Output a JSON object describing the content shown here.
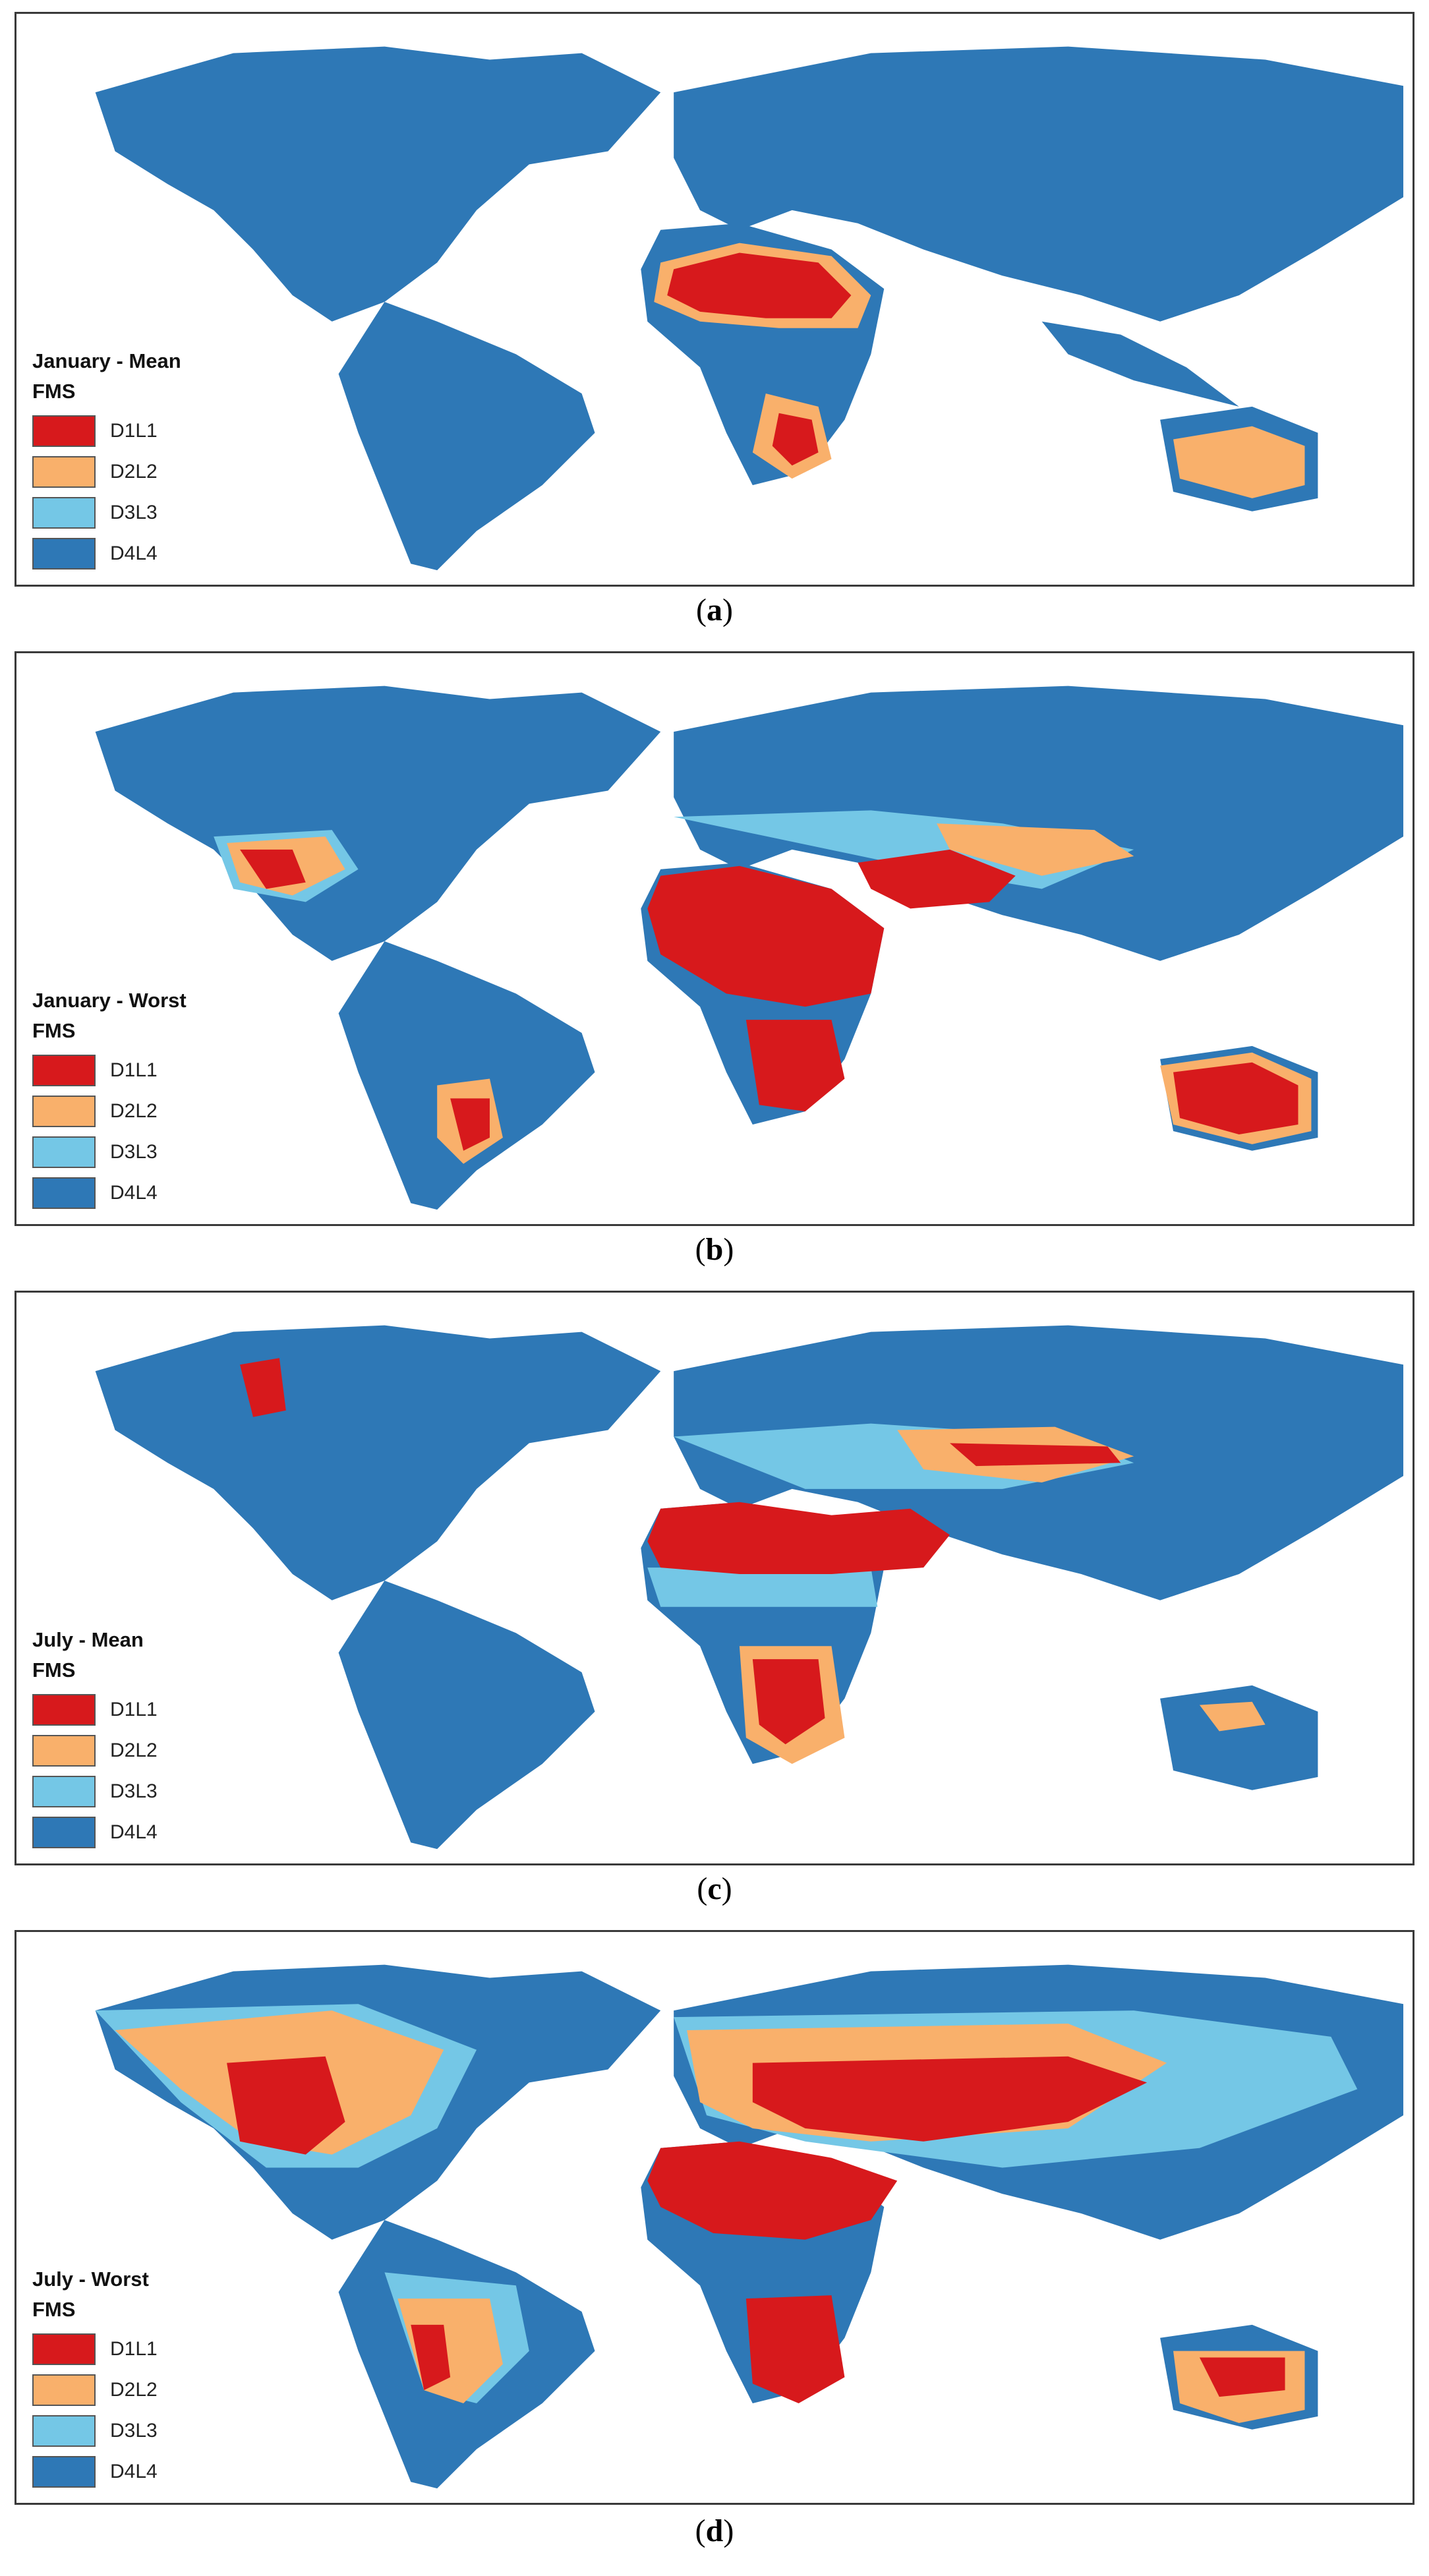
{
  "colors": {
    "D1L1": "#d7191c",
    "D2L2": "#f9b06b",
    "D3L3": "#74c7e6",
    "D4L4": "#2e78b6",
    "border": "#3a3a3a",
    "ocean": "#ffffff"
  },
  "legend_classes": [
    {
      "label": "D1L1",
      "color": "#d7191c"
    },
    {
      "label": "D2L2",
      "color": "#f9b06b"
    },
    {
      "label": "D3L3",
      "color": "#74c7e6"
    },
    {
      "label": "D4L4",
      "color": "#2e78b6"
    }
  ],
  "panels": [
    {
      "title": "January - Mean",
      "subtitle": "FMS",
      "caption": "a"
    },
    {
      "title": "January - Worst",
      "subtitle": "FMS",
      "caption": "b"
    },
    {
      "title": "July - Mean",
      "subtitle": "FMS",
      "caption": "c"
    },
    {
      "title": "July - Worst",
      "subtitle": "FMS",
      "caption": "d"
    }
  ]
}
